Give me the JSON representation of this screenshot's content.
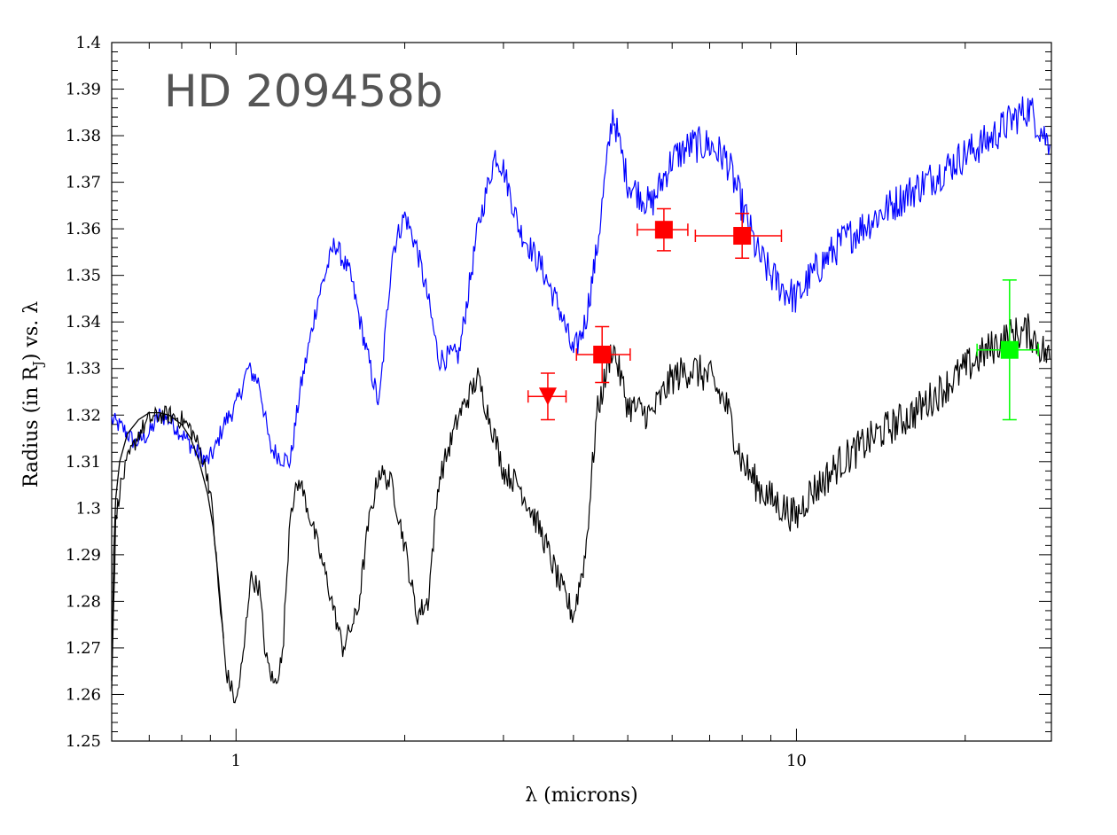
{
  "chart_data": {
    "type": "line",
    "title": "HD 209458b",
    "xlabel": "λ (microns)",
    "ylabel": "Radius (in R",
    "ylabel_sub": "J",
    "ylabel_suffix": ") vs. λ",
    "xscale": "log",
    "xlim": [
      0.6,
      28.5
    ],
    "ylim": [
      1.25,
      1.4
    ],
    "yticks": [
      1.25,
      1.26,
      1.27,
      1.28,
      1.29,
      1.3,
      1.31,
      1.32,
      1.33,
      1.34,
      1.35,
      1.36,
      1.37,
      1.38,
      1.39,
      1.4
    ],
    "ytick_labels": [
      "1.25",
      "1.26",
      "1.27",
      "1.28",
      "1.29",
      "1.3",
      "1.31",
      "1.32",
      "1.33",
      "1.34",
      "1.35",
      "1.36",
      "1.37",
      "1.38",
      "1.39",
      "1.4"
    ],
    "xticks": [
      1,
      10
    ],
    "xtick_labels": [
      "1",
      "10"
    ],
    "grid": false,
    "series": [
      {
        "color": "#0000ff",
        "noise": 0.004,
        "x": [
          0.6,
          0.63,
          0.66,
          0.7,
          0.73,
          0.76,
          0.8,
          0.85,
          0.89,
          0.92,
          0.95,
          1.0,
          1.05,
          1.1,
          1.15,
          1.2,
          1.25,
          1.3,
          1.4,
          1.5,
          1.6,
          1.7,
          1.8,
          1.9,
          2.0,
          2.1,
          2.2,
          2.3,
          2.5,
          2.7,
          2.9,
          3.0,
          3.2,
          3.5,
          3.8,
          4.0,
          4.2,
          4.4,
          4.7,
          5.0,
          5.5,
          6.0,
          6.5,
          7.0,
          7.5,
          8.0,
          8.5,
          9.0,
          9.5,
          10.0,
          10.5,
          11,
          12,
          14,
          16,
          18,
          20,
          22,
          24,
          26,
          28.3
        ],
        "y": [
          1.319,
          1.317,
          1.314,
          1.316,
          1.32,
          1.319,
          1.316,
          1.312,
          1.31,
          1.313,
          1.318,
          1.322,
          1.33,
          1.327,
          1.313,
          1.311,
          1.31,
          1.325,
          1.345,
          1.357,
          1.35,
          1.335,
          1.322,
          1.355,
          1.363,
          1.356,
          1.345,
          1.332,
          1.333,
          1.36,
          1.376,
          1.373,
          1.36,
          1.352,
          1.342,
          1.333,
          1.34,
          1.355,
          1.385,
          1.37,
          1.365,
          1.375,
          1.378,
          1.378,
          1.375,
          1.365,
          1.355,
          1.35,
          1.347,
          1.345,
          1.349,
          1.352,
          1.357,
          1.363,
          1.368,
          1.372,
          1.376,
          1.379,
          1.383,
          1.386,
          1.378
        ]
      },
      {
        "color": "#000000",
        "noise": 0.004,
        "x": [
          0.6,
          0.61,
          0.62,
          0.64,
          0.67,
          0.7,
          0.73,
          0.76,
          0.8,
          0.83,
          0.86,
          0.89,
          0.91,
          0.93,
          0.96,
          1.0,
          1.03,
          1.06,
          1.1,
          1.13,
          1.17,
          1.21,
          1.25,
          1.3,
          1.37,
          1.45,
          1.55,
          1.65,
          1.72,
          1.8,
          1.9,
          2.0,
          2.1,
          2.2,
          2.3,
          2.5,
          2.7,
          2.9,
          3.0,
          3.2,
          3.5,
          3.8,
          4.0,
          4.2,
          4.4,
          4.7,
          5.0,
          5.5,
          6.0,
          6.5,
          7.0,
          7.5,
          8.0,
          8.5,
          9.0,
          9.5,
          10.0,
          10.5,
          11,
          12,
          14,
          16,
          18,
          20,
          22,
          24,
          26,
          28.3
        ],
        "y": [
          1.263,
          1.297,
          1.304,
          1.31,
          1.316,
          1.319,
          1.32,
          1.32,
          1.319,
          1.317,
          1.313,
          1.307,
          1.298,
          1.283,
          1.265,
          1.258,
          1.268,
          1.285,
          1.283,
          1.268,
          1.262,
          1.268,
          1.3,
          1.306,
          1.296,
          1.285,
          1.27,
          1.278,
          1.296,
          1.308,
          1.305,
          1.292,
          1.277,
          1.28,
          1.306,
          1.32,
          1.328,
          1.315,
          1.308,
          1.305,
          1.295,
          1.283,
          1.277,
          1.29,
          1.32,
          1.335,
          1.322,
          1.32,
          1.328,
          1.33,
          1.328,
          1.322,
          1.31,
          1.305,
          1.302,
          1.3,
          1.298,
          1.303,
          1.305,
          1.31,
          1.316,
          1.32,
          1.325,
          1.33,
          1.334,
          1.337,
          1.338,
          1.332
        ]
      }
    ],
    "analytic_curve": {
      "color": "#000000",
      "x": [
        0.6,
        0.605,
        0.61,
        0.62,
        0.64,
        0.67,
        0.7,
        0.73,
        0.76,
        0.8,
        0.83,
        0.86,
        0.89,
        0.91,
        0.93,
        0.95
      ],
      "y": [
        1.263,
        1.29,
        1.302,
        1.31,
        1.316,
        1.319,
        1.3205,
        1.3205,
        1.32,
        1.318,
        1.315,
        1.31,
        1.303,
        1.296,
        1.285,
        1.272
      ]
    },
    "points": [
      {
        "color": "#ff0000",
        "marker": "triangle-down",
        "x": 3.6,
        "y": 1.324,
        "xerr": [
          0.28,
          0.28
        ],
        "yerr": 0.005
      },
      {
        "color": "#ff0000",
        "marker": "square",
        "x": 4.5,
        "y": 1.333,
        "xerr": [
          0.45,
          0.55
        ],
        "yerr": 0.006
      },
      {
        "color": "#ff0000",
        "marker": "square",
        "x": 5.8,
        "y": 1.3598,
        "xerr": [
          0.6,
          0.6
        ],
        "yerr": 0.0045
      },
      {
        "color": "#ff0000",
        "marker": "square",
        "x": 8.0,
        "y": 1.3585,
        "xerr": [
          1.4,
          1.4
        ],
        "yerr": 0.0048
      },
      {
        "color": "#00ff00",
        "marker": "square",
        "x": 24.0,
        "y": 1.334,
        "xerr": [
          3.0,
          3.0
        ],
        "yerr": 0.015
      }
    ]
  }
}
